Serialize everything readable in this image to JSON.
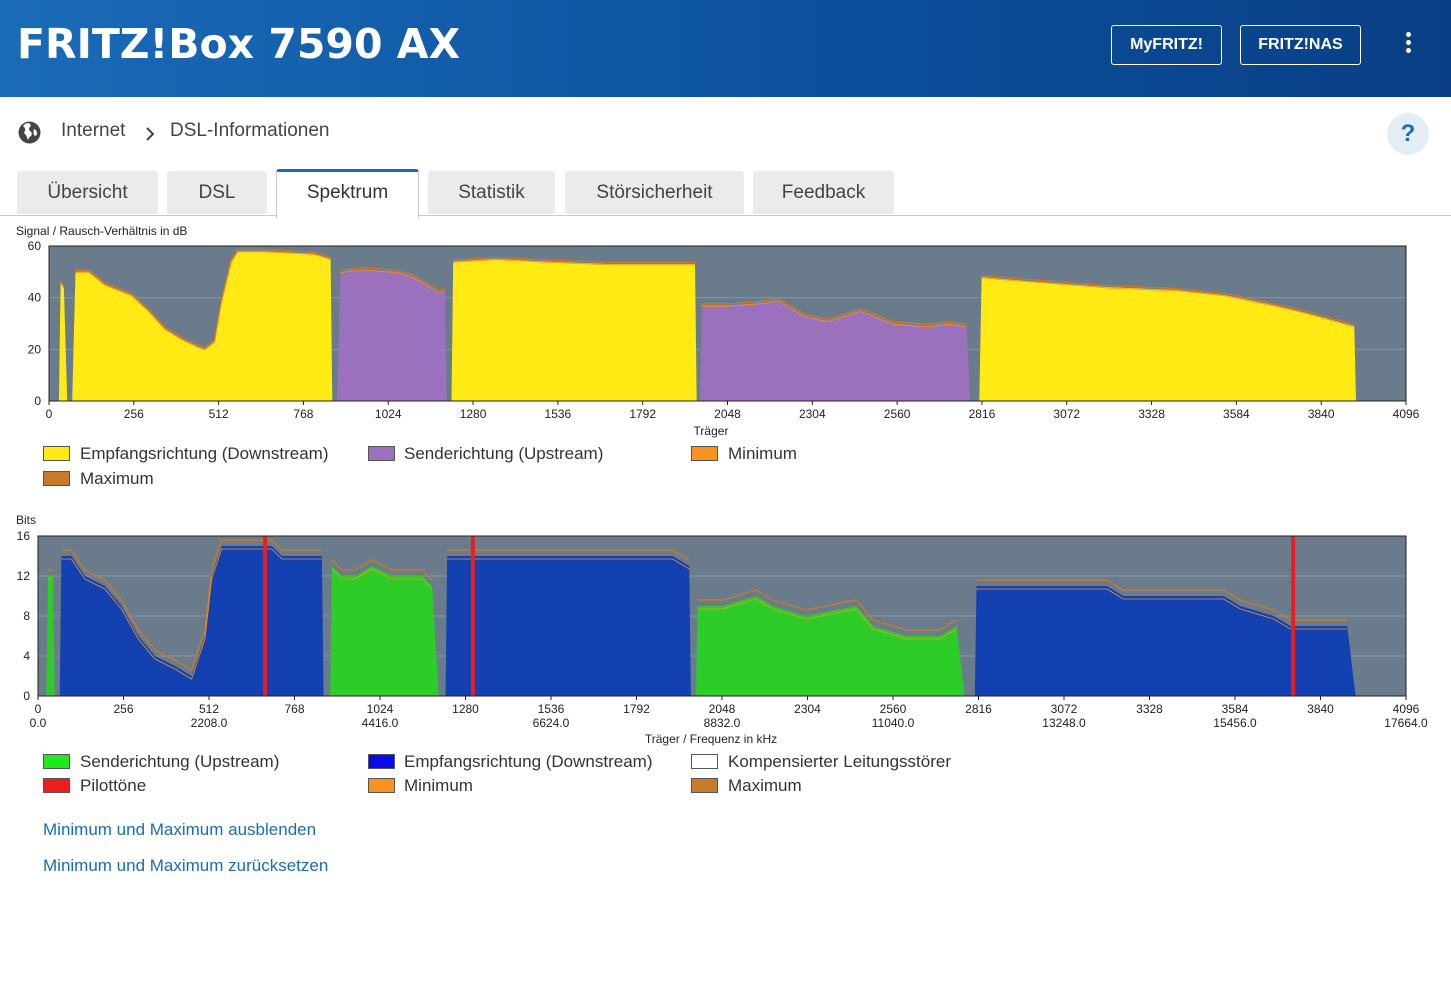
{
  "header": {
    "title": "FRITZ!Box 7590 AX",
    "myfritz": "MyFRITZ!",
    "fritznas": "FRITZ!NAS"
  },
  "breadcrumb": {
    "root": "Internet",
    "current": "DSL-Informationen"
  },
  "help": "?",
  "tabs": [
    {
      "label": "Übersicht"
    },
    {
      "label": "DSL"
    },
    {
      "label": "Spektrum"
    },
    {
      "label": "Statistik"
    },
    {
      "label": "Störsicherheit"
    },
    {
      "label": "Feedback"
    }
  ],
  "colors": {
    "plot_bg": "#6a7c8c",
    "yellow": "#ffea14",
    "purple": "#9b70bd",
    "orange_max": "#c77a2a",
    "green": "#2ecc28",
    "blue": "#1441b2",
    "red": "#ee1c1c"
  },
  "snr_chart": {
    "ylabel": "Signal / Rausch-Verhältnis in dB",
    "xlabel": "Träger",
    "yticks": [
      "0",
      "20",
      "40",
      "60"
    ],
    "xticks": [
      "0",
      "256",
      "512",
      "768",
      "1024",
      "1280",
      "1536",
      "1792",
      "2048",
      "2304",
      "2560",
      "2816",
      "3072",
      "3328",
      "3584",
      "3840",
      "4096"
    ],
    "legend": [
      {
        "label": "Empfangsrichtung (Downstream)",
        "color": "#ffea14"
      },
      {
        "label": "Senderichtung (Upstream)",
        "color": "#9b70bd"
      },
      {
        "label": "Minimum",
        "color": "#f7931e"
      },
      {
        "label": "Maximum",
        "color": "#c77a2a"
      }
    ]
  },
  "bits_chart": {
    "ylabel": "Bits",
    "xlabel": "Träger / Frequenz in kHz",
    "yticks": [
      "0",
      "4",
      "8",
      "12",
      "16"
    ],
    "xticks": [
      "0",
      "256",
      "512",
      "768",
      "1024",
      "1280",
      "1536",
      "1792",
      "2048",
      "2304",
      "2560",
      "2816",
      "3072",
      "3328",
      "3584",
      "3840",
      "4096"
    ],
    "freq_ticks": [
      "0.0",
      "2208.0",
      "4416.0",
      "6624.0",
      "8832.0",
      "11040.0",
      "13248.0",
      "15456.0",
      "17664.0"
    ],
    "legend": [
      {
        "label": "Senderichtung (Upstream)",
        "color": "#1fe81f"
      },
      {
        "label": "Empfangsrichtung (Downstream)",
        "color": "#0a0aee"
      },
      {
        "label": "Kompensierter Leitungsstörer",
        "color": "#ffffff"
      },
      {
        "label": "Pilottöne",
        "color": "#ee1c1c"
      },
      {
        "label": "Minimum",
        "color": "#f7931e"
      },
      {
        "label": "Maximum",
        "color": "#c77a2a"
      }
    ]
  },
  "links": {
    "hide": "Minimum und Maximum ausblenden",
    "reset": "Minimum und Maximum zurücksetzen"
  },
  "chart_data": [
    {
      "type": "area",
      "title": "Signal / Rausch-Verhältnis in dB",
      "xlabel": "Träger",
      "ylabel": "dB",
      "xlim": [
        0,
        4096
      ],
      "ylim": [
        0,
        60
      ],
      "series": [
        {
          "name": "Empfangsrichtung (Downstream)",
          "color": "#ffea14",
          "segments": [
            [
              [
                30,
                0
              ],
              [
                35,
                46
              ],
              [
                45,
                44
              ],
              [
                55,
                0
              ]
            ],
            [
              [
                70,
                0
              ],
              [
                80,
                50
              ],
              [
                120,
                50
              ],
              [
                170,
                45
              ],
              [
                250,
                41
              ],
              [
                300,
                35
              ],
              [
                350,
                28
              ],
              [
                400,
                24
              ],
              [
                450,
                21
              ],
              [
                470,
                20
              ],
              [
                500,
                23
              ],
              [
                520,
                38
              ],
              [
                550,
                54
              ],
              [
                570,
                58
              ],
              [
                650,
                58
              ],
              [
                800,
                57
              ],
              [
                850,
                55
              ],
              [
                855,
                0
              ]
            ],
            [
              [
                1215,
                0
              ],
              [
                1220,
                54
              ],
              [
                1350,
                55
              ],
              [
                1500,
                54
              ],
              [
                1700,
                53
              ],
              [
                1950,
                53
              ],
              [
                1955,
                0
              ]
            ],
            [
              [
                2808,
                0
              ],
              [
                2815,
                48
              ],
              [
                2900,
                47
              ],
              [
                3000,
                46
              ],
              [
                3200,
                44
              ],
              [
                3400,
                43
              ],
              [
                3550,
                41
              ],
              [
                3700,
                37
              ],
              [
                3800,
                34
              ],
              [
                3940,
                29
              ],
              [
                3945,
                0
              ]
            ]
          ]
        },
        {
          "name": "Senderichtung (Upstream)",
          "color": "#9b70bd",
          "segments": [
            [
              [
                870,
                0
              ],
              [
                880,
                50
              ],
              [
                950,
                51
              ],
              [
                1050,
                50
              ],
              [
                1100,
                48
              ],
              [
                1180,
                42
              ],
              [
                1195,
                43
              ],
              [
                1200,
                0
              ]
            ],
            [
              [
                1965,
                0
              ],
              [
                1970,
                37
              ],
              [
                2050,
                37
              ],
              [
                2150,
                38
              ],
              [
                2200,
                39
              ],
              [
                2280,
                33
              ],
              [
                2350,
                31
              ],
              [
                2450,
                35
              ],
              [
                2550,
                30
              ],
              [
                2650,
                29
              ],
              [
                2720,
                30
              ],
              [
                2770,
                29
              ],
              [
                2780,
                0
              ]
            ]
          ]
        }
      ]
    },
    {
      "type": "area",
      "title": "Bits",
      "xlabel": "Träger / Frequenz in kHz",
      "ylabel": "Bits",
      "xlim": [
        0,
        4096
      ],
      "ylim": [
        0,
        16
      ],
      "series": [
        {
          "name": "Senderichtung (Upstream)",
          "color": "#2ecc28",
          "segments": [
            [
              [
                25,
                0
              ],
              [
                30,
                12
              ],
              [
                45,
                12
              ],
              [
                50,
                0
              ]
            ],
            [
              [
                875,
                0
              ],
              [
                880,
                13
              ],
              [
                910,
                12
              ],
              [
                950,
                12
              ],
              [
                1000,
                13
              ],
              [
                1060,
                12
              ],
              [
                1150,
                12
              ],
              [
                1180,
                11
              ],
              [
                1200,
                0
              ]
            ],
            [
              [
                1970,
                0
              ],
              [
                1975,
                9
              ],
              [
                2050,
                9
              ],
              [
                2150,
                10
              ],
              [
                2200,
                9
              ],
              [
                2300,
                8
              ],
              [
                2450,
                9
              ],
              [
                2500,
                7
              ],
              [
                2600,
                6
              ],
              [
                2700,
                6
              ],
              [
                2750,
                7
              ],
              [
                2775,
                0
              ]
            ]
          ]
        },
        {
          "name": "Empfangsrichtung (Downstream)",
          "color": "#1441b2",
          "segments": [
            [
              [
                65,
                0
              ],
              [
                70,
                14
              ],
              [
                100,
                14
              ],
              [
                140,
                12
              ],
              [
                200,
                11
              ],
              [
                250,
                9
              ],
              [
                300,
                6
              ],
              [
                350,
                4
              ],
              [
                410,
                3
              ],
              [
                460,
                2
              ],
              [
                480,
                4
              ],
              [
                500,
                6
              ],
              [
                520,
                12
              ],
              [
                550,
                15
              ],
              [
                700,
                15
              ],
              [
                730,
                14
              ],
              [
                850,
                14
              ],
              [
                855,
                0
              ]
            ],
            [
              [
                1220,
                0
              ],
              [
                1225,
                14
              ],
              [
                1900,
                14
              ],
              [
                1950,
                13
              ],
              [
                1955,
                0
              ]
            ],
            [
              [
                2805,
                0
              ],
              [
                2810,
                11
              ],
              [
                3200,
                11
              ],
              [
                3250,
                10
              ],
              [
                3550,
                10
              ],
              [
                3600,
                9
              ],
              [
                3700,
                8
              ],
              [
                3750,
                7
              ],
              [
                3920,
                7
              ],
              [
                3945,
                0
              ]
            ]
          ]
        },
        {
          "name": "Pilottöne",
          "color": "#ee1c1c",
          "x": [
            680,
            1302,
            3758
          ]
        }
      ]
    }
  ]
}
